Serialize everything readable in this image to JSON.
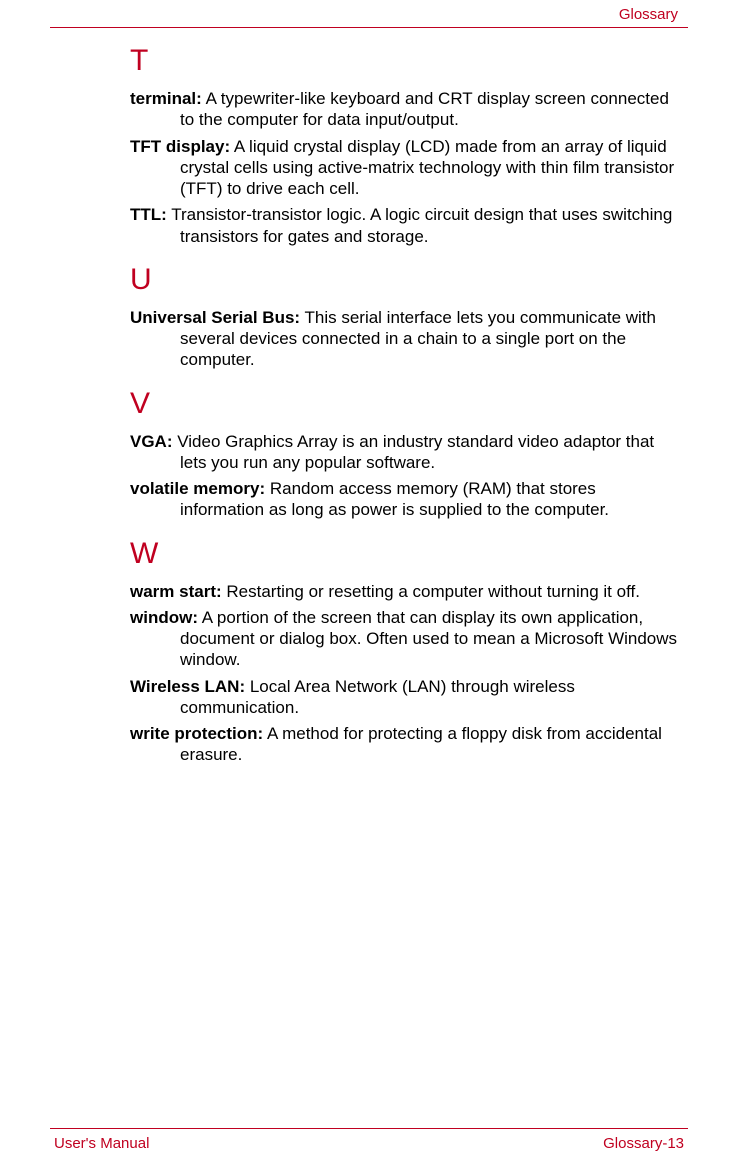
{
  "header": {
    "section": "Glossary"
  },
  "colors": {
    "accent": "#c00020",
    "text": "#000000",
    "background": "#ffffff"
  },
  "typography": {
    "body_size": 17,
    "letter_size": 30,
    "header_size": 15,
    "footer_size": 15
  },
  "sections": [
    {
      "letter": "T",
      "entries": [
        {
          "term": "terminal:",
          "def": "A typewriter-like keyboard and CRT display screen connected to the computer for data input/output."
        },
        {
          "term": "TFT display:",
          "def": "A liquid crystal display (LCD) made from an array of liquid crystal cells using active-matrix technology with thin film transistor (TFT) to drive each cell."
        },
        {
          "term": "TTL:",
          "def": "Transistor-transistor logic. A logic circuit design that uses switching transistors for gates and storage."
        }
      ]
    },
    {
      "letter": "U",
      "entries": [
        {
          "term": "Universal Serial Bus:",
          "def": "This serial interface lets you communicate with several devices connected in a chain to a single port on the computer."
        }
      ]
    },
    {
      "letter": "V",
      "entries": [
        {
          "term": "VGA:",
          "def": "Video Graphics Array is an industry standard video adaptor that lets you run any popular software."
        },
        {
          "term": "volatile memory:",
          "def": "Random access memory (RAM) that stores information as long as power is supplied to the computer."
        }
      ]
    },
    {
      "letter": "W",
      "entries": [
        {
          "term": "warm start:",
          "def": "Restarting or resetting a computer without turning it off."
        },
        {
          "term": "window:",
          "def": "A portion of the screen that can display its own application, document or dialog box. Often used to mean a Microsoft Windows window."
        },
        {
          "term": "Wireless LAN:",
          "def": "Local Area Network (LAN) through wireless communication."
        },
        {
          "term": "write protection:",
          "def": "A method for protecting a floppy disk from accidental erasure."
        }
      ]
    }
  ],
  "footer": {
    "left": "User's Manual",
    "right": "Glossary-13"
  }
}
